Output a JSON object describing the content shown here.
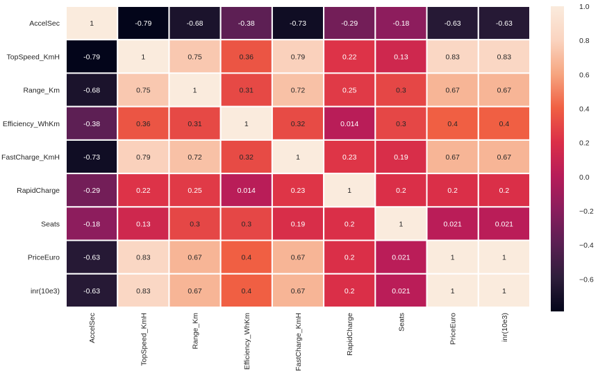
{
  "chart_data": {
    "type": "heatmap",
    "title": "",
    "xlabel": "",
    "ylabel": "",
    "rows": [
      "AccelSec",
      "TopSpeed_KmH",
      "Range_Km",
      "Efficiency_WhKm",
      "FastCharge_KmH",
      "RapidCharge",
      "Seats",
      "PriceEuro",
      "inr(10e3)"
    ],
    "columns": [
      "AccelSec",
      "TopSpeed_KmH",
      "Range_Km",
      "Efficiency_WhKm",
      "FastCharge_KmH",
      "RapidCharge",
      "Seats",
      "PriceEuro",
      "inr(10e3)"
    ],
    "values": [
      [
        1,
        -0.79,
        -0.68,
        -0.38,
        -0.73,
        -0.29,
        -0.18,
        -0.63,
        -0.63
      ],
      [
        -0.79,
        1,
        0.75,
        0.36,
        0.79,
        0.22,
        0.13,
        0.83,
        0.83
      ],
      [
        -0.68,
        0.75,
        1,
        0.31,
        0.72,
        0.25,
        0.3,
        0.67,
        0.67
      ],
      [
        -0.38,
        0.36,
        0.31,
        1,
        0.32,
        0.014,
        0.3,
        0.4,
        0.4
      ],
      [
        -0.73,
        0.79,
        0.72,
        0.32,
        1,
        0.23,
        0.19,
        0.67,
        0.67
      ],
      [
        -0.29,
        0.22,
        0.25,
        0.014,
        0.23,
        1,
        0.2,
        0.2,
        0.2
      ],
      [
        -0.18,
        0.13,
        0.3,
        0.3,
        0.19,
        0.2,
        1,
        0.021,
        0.021
      ],
      [
        -0.63,
        0.83,
        0.67,
        0.4,
        0.67,
        0.2,
        0.021,
        1,
        1
      ],
      [
        -0.63,
        0.83,
        0.67,
        0.4,
        0.67,
        0.2,
        0.021,
        1,
        1
      ]
    ],
    "cell_labels": [
      [
        "1",
        "-0.79",
        "-0.68",
        "-0.38",
        "-0.73",
        "-0.29",
        "-0.18",
        "-0.63",
        "-0.63"
      ],
      [
        "-0.79",
        "1",
        "0.75",
        "0.36",
        "0.79",
        "0.22",
        "0.13",
        "0.83",
        "0.83"
      ],
      [
        "-0.68",
        "0.75",
        "1",
        "0.31",
        "0.72",
        "0.25",
        "0.3",
        "0.67",
        "0.67"
      ],
      [
        "-0.38",
        "0.36",
        "0.31",
        "1",
        "0.32",
        "0.014",
        "0.3",
        "0.4",
        "0.4"
      ],
      [
        "-0.73",
        "0.79",
        "0.72",
        "0.32",
        "1",
        "0.23",
        "0.19",
        "0.67",
        "0.67"
      ],
      [
        "-0.29",
        "0.22",
        "0.25",
        "0.014",
        "0.23",
        "1",
        "0.2",
        "0.2",
        "0.2"
      ],
      [
        "-0.18",
        "0.13",
        "0.3",
        "0.3",
        "0.19",
        "0.2",
        "1",
        "0.021",
        "0.021"
      ],
      [
        "-0.63",
        "0.83",
        "0.67",
        "0.4",
        "0.67",
        "0.2",
        "0.021",
        "1",
        "1"
      ],
      [
        "-0.63",
        "0.83",
        "0.67",
        "0.4",
        "0.67",
        "0.2",
        "0.021",
        "1",
        "1"
      ]
    ],
    "color_scale": {
      "name": "rocket",
      "vmin": -0.79,
      "vmax": 1,
      "ticks": [
        1.0,
        0.8,
        0.6,
        0.4,
        0.2,
        0.0,
        -0.2,
        -0.4,
        -0.6
      ],
      "tick_labels": [
        "1.0",
        "0.8",
        "0.6",
        "0.4",
        "0.2",
        "0.0",
        "−0.2",
        "−0.4",
        "−0.6"
      ],
      "stops": [
        "#03051a",
        "#2e1e3b",
        "#5a1f53",
        "#8a1d5d",
        "#b71c59",
        "#db2f48",
        "#f06043",
        "#f6a580",
        "#fad4c0",
        "#faebdd"
      ]
    },
    "legend": "right",
    "grid": false
  }
}
